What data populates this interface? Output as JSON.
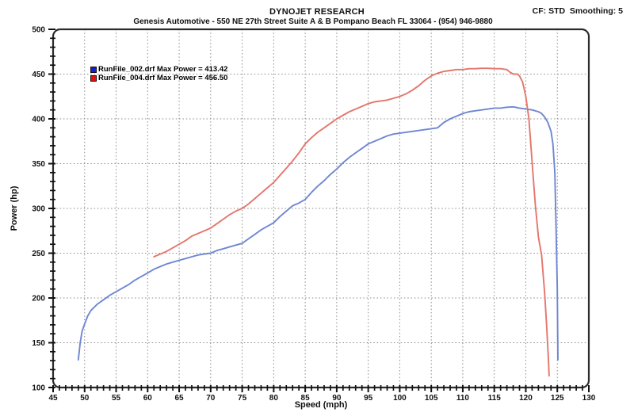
{
  "header": {
    "title": "DYNOJET RESEARCH",
    "subtitle": "Genesis Automotive - 550 NE 27th Street Suite A & B Pompano Beach FL 33064 - (954) 946-9880",
    "cf_label": "CF: STD  Smoothing: 5"
  },
  "colors": {
    "frame": "#2b2b2b",
    "grid": "#8a8a8a",
    "tick": "#111111",
    "text": "#111111",
    "background": "#ffffff"
  },
  "chart_data": {
    "type": "line",
    "title": "DYNOJET RESEARCH",
    "xlabel": "Speed (mph)",
    "ylabel": "Power (hp)",
    "xlim": [
      45,
      130
    ],
    "ylim": [
      100,
      500
    ],
    "x_tick_labels": [
      45,
      50,
      55,
      60,
      65,
      70,
      75,
      80,
      85,
      90,
      95,
      100,
      105,
      110,
      115,
      120,
      125,
      130
    ],
    "y_tick_labels": [
      100,
      150,
      200,
      250,
      300,
      350,
      400,
      450,
      500
    ],
    "x_minor_step": 1,
    "y_minor_step": 10,
    "grid": true,
    "legend_position": "upper-left-inside",
    "series": [
      {
        "name": "RunFile_002.drf Max Power = 413.42",
        "max_power": 413.42,
        "color": "#6f87d2",
        "swatch_color": "#1c1cd6",
        "points": [
          [
            49,
            131
          ],
          [
            49.3,
            150
          ],
          [
            49.6,
            163
          ],
          [
            50,
            171
          ],
          [
            50.5,
            180
          ],
          [
            51,
            186
          ],
          [
            52,
            193
          ],
          [
            53,
            198
          ],
          [
            54,
            203
          ],
          [
            55,
            207
          ],
          [
            56,
            211
          ],
          [
            57,
            215
          ],
          [
            58,
            220
          ],
          [
            59,
            224
          ],
          [
            60,
            228
          ],
          [
            61,
            232
          ],
          [
            62,
            235
          ],
          [
            63,
            238
          ],
          [
            64,
            240
          ],
          [
            65,
            242
          ],
          [
            66,
            244
          ],
          [
            67,
            246
          ],
          [
            68,
            248
          ],
          [
            69,
            249
          ],
          [
            70,
            250
          ],
          [
            71,
            253
          ],
          [
            72,
            255
          ],
          [
            73,
            257
          ],
          [
            74,
            259
          ],
          [
            75,
            261
          ],
          [
            76,
            266
          ],
          [
            77,
            271
          ],
          [
            78,
            276
          ],
          [
            79,
            280
          ],
          [
            80,
            284
          ],
          [
            81,
            291
          ],
          [
            82,
            297
          ],
          [
            83,
            303
          ],
          [
            84,
            306
          ],
          [
            85,
            310
          ],
          [
            86,
            318
          ],
          [
            87,
            325
          ],
          [
            88,
            331
          ],
          [
            89,
            338
          ],
          [
            90,
            344
          ],
          [
            91,
            351
          ],
          [
            92,
            357
          ],
          [
            93,
            362
          ],
          [
            94,
            367
          ],
          [
            95,
            372
          ],
          [
            96,
            375
          ],
          [
            97,
            378
          ],
          [
            98,
            381
          ],
          [
            99,
            383
          ],
          [
            100,
            384
          ],
          [
            101,
            385
          ],
          [
            102,
            386
          ],
          [
            103,
            387
          ],
          [
            104,
            388
          ],
          [
            105,
            389
          ],
          [
            106,
            390
          ],
          [
            106.5,
            393
          ],
          [
            107,
            396
          ],
          [
            108,
            400
          ],
          [
            109,
            403
          ],
          [
            110,
            406
          ],
          [
            111,
            408
          ],
          [
            112,
            409
          ],
          [
            113,
            410
          ],
          [
            114,
            411
          ],
          [
            115,
            412
          ],
          [
            116,
            412
          ],
          [
            117,
            413
          ],
          [
            118,
            413.42
          ],
          [
            119,
            412
          ],
          [
            120,
            411
          ],
          [
            121,
            410
          ],
          [
            122,
            408
          ],
          [
            122.5,
            406
          ],
          [
            123,
            402
          ],
          [
            123.5,
            396
          ],
          [
            124,
            386
          ],
          [
            124.3,
            372
          ],
          [
            124.6,
            340
          ],
          [
            124.8,
            280
          ],
          [
            125,
            210
          ],
          [
            125.1,
            131
          ]
        ]
      },
      {
        "name": "RunFile_004.drf Max Power = 456.50",
        "max_power": 456.5,
        "color": "#e4766c",
        "swatch_color": "#e01212",
        "points": [
          [
            61,
            246
          ],
          [
            62,
            249
          ],
          [
            63,
            252
          ],
          [
            64,
            256
          ],
          [
            65,
            260
          ],
          [
            66,
            264
          ],
          [
            67,
            269
          ],
          [
            68,
            272
          ],
          [
            69,
            275
          ],
          [
            70,
            278
          ],
          [
            71,
            283
          ],
          [
            72,
            288
          ],
          [
            73,
            293
          ],
          [
            74,
            297
          ],
          [
            75,
            300
          ],
          [
            76,
            305
          ],
          [
            77,
            311
          ],
          [
            78,
            317
          ],
          [
            79,
            323
          ],
          [
            80,
            329
          ],
          [
            81,
            337
          ],
          [
            82,
            345
          ],
          [
            83,
            353
          ],
          [
            84,
            362
          ],
          [
            85,
            372
          ],
          [
            86,
            379
          ],
          [
            87,
            385
          ],
          [
            88,
            390
          ],
          [
            89,
            395
          ],
          [
            90,
            400
          ],
          [
            91,
            404
          ],
          [
            92,
            408
          ],
          [
            93,
            411
          ],
          [
            94,
            414
          ],
          [
            95,
            417
          ],
          [
            96,
            419
          ],
          [
            97,
            420
          ],
          [
            98,
            421
          ],
          [
            99,
            423
          ],
          [
            100,
            425
          ],
          [
            101,
            428
          ],
          [
            102,
            432
          ],
          [
            103,
            437
          ],
          [
            104,
            443
          ],
          [
            105,
            448
          ],
          [
            106,
            451
          ],
          [
            107,
            453
          ],
          [
            108,
            454
          ],
          [
            109,
            455
          ],
          [
            110,
            455
          ],
          [
            111,
            456
          ],
          [
            112,
            456
          ],
          [
            113,
            456.5
          ],
          [
            114,
            456.5
          ],
          [
            115,
            456
          ],
          [
            116,
            456
          ],
          [
            117,
            455
          ],
          [
            117.5,
            452
          ],
          [
            118,
            450
          ],
          [
            118.7,
            450
          ],
          [
            119,
            448
          ],
          [
            119.5,
            441
          ],
          [
            120,
            425
          ],
          [
            120.5,
            400
          ],
          [
            121,
            352
          ],
          [
            121.5,
            305
          ],
          [
            122,
            268
          ],
          [
            122.5,
            248
          ],
          [
            123,
            205
          ],
          [
            123.3,
            170
          ],
          [
            123.6,
            130
          ],
          [
            123.7,
            113
          ]
        ]
      }
    ]
  }
}
